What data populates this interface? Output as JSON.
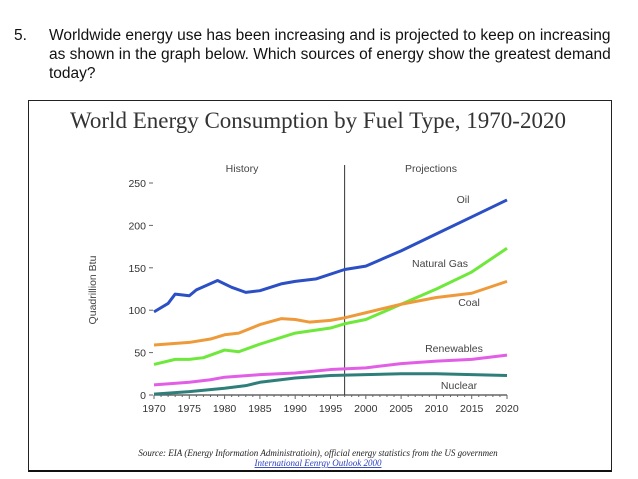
{
  "question": {
    "number": "5.",
    "text": "Worldwide energy use has been increasing and is projected to keep on increasing as shown in the graph below. Which sources of energy show the greatest demand today?"
  },
  "chart_data": {
    "type": "line",
    "title": "World Energy Consumption by Fuel Type, 1970-2020",
    "xlabel": "",
    "ylabel": "Quadrillion Btu",
    "xlim": [
      1970,
      2020
    ],
    "ylim": [
      0,
      250
    ],
    "x_ticks": [
      "1970",
      "1975",
      "1980",
      "1985",
      "1990",
      "1995",
      "2000",
      "2005",
      "2010",
      "2015",
      "2020"
    ],
    "y_ticks": [
      "0",
      "50",
      "100",
      "150",
      "200",
      "250"
    ],
    "grid": false,
    "divider_year": 1997,
    "region_labels": [
      "History",
      "Projections"
    ],
    "series": [
      {
        "name": "Oil",
        "color": "#2b4fc4",
        "points": [
          [
            1970,
            98
          ],
          [
            1972,
            108
          ],
          [
            1973,
            119
          ],
          [
            1975,
            117
          ],
          [
            1976,
            124
          ],
          [
            1979,
            135
          ],
          [
            1981,
            127
          ],
          [
            1983,
            121
          ],
          [
            1985,
            123
          ],
          [
            1988,
            131
          ],
          [
            1990,
            134
          ],
          [
            1993,
            137
          ],
          [
            1997,
            148
          ],
          [
            2000,
            152
          ],
          [
            2005,
            170
          ],
          [
            2010,
            190
          ],
          [
            2015,
            210
          ],
          [
            2020,
            230
          ]
        ]
      },
      {
        "name": "Natural Gas",
        "color": "#6ee83a",
        "points": [
          [
            1970,
            36
          ],
          [
            1973,
            42
          ],
          [
            1975,
            42
          ],
          [
            1977,
            44
          ],
          [
            1980,
            53
          ],
          [
            1982,
            51
          ],
          [
            1985,
            60
          ],
          [
            1990,
            73
          ],
          [
            1995,
            79
          ],
          [
            1997,
            84
          ],
          [
            2000,
            89
          ],
          [
            2005,
            107
          ],
          [
            2010,
            125
          ],
          [
            2015,
            145
          ],
          [
            2020,
            173
          ]
        ]
      },
      {
        "name": "Coal",
        "color": "#ee9a3a",
        "points": [
          [
            1970,
            59
          ],
          [
            1975,
            62
          ],
          [
            1978,
            66
          ],
          [
            1980,
            71
          ],
          [
            1982,
            73
          ],
          [
            1985,
            83
          ],
          [
            1988,
            90
          ],
          [
            1990,
            89
          ],
          [
            1992,
            86
          ],
          [
            1995,
            88
          ],
          [
            1997,
            91
          ],
          [
            2000,
            97
          ],
          [
            2005,
            107
          ],
          [
            2010,
            115
          ],
          [
            2015,
            120
          ],
          [
            2020,
            134
          ]
        ]
      },
      {
        "name": "Renewables",
        "color": "#e25ee6",
        "points": [
          [
            1970,
            12
          ],
          [
            1975,
            15
          ],
          [
            1978,
            18
          ],
          [
            1980,
            21
          ],
          [
            1985,
            24
          ],
          [
            1990,
            26
          ],
          [
            1995,
            30
          ],
          [
            2000,
            32
          ],
          [
            2005,
            37
          ],
          [
            2010,
            40
          ],
          [
            2015,
            42
          ],
          [
            2020,
            47
          ]
        ]
      },
      {
        "name": "Nuclear",
        "color": "#2e7f7a",
        "points": [
          [
            1970,
            1
          ],
          [
            1975,
            4
          ],
          [
            1980,
            8
          ],
          [
            1983,
            11
          ],
          [
            1985,
            15
          ],
          [
            1990,
            20
          ],
          [
            1995,
            23
          ],
          [
            2000,
            24
          ],
          [
            2005,
            25
          ],
          [
            2010,
            25
          ],
          [
            2015,
            24
          ],
          [
            2020,
            23
          ]
        ]
      }
    ],
    "source": "Source: EIA (Energy Information Administratioin), official energy statistics from the US governmen",
    "source_link": "International Eenrgy Outlook 2000"
  }
}
